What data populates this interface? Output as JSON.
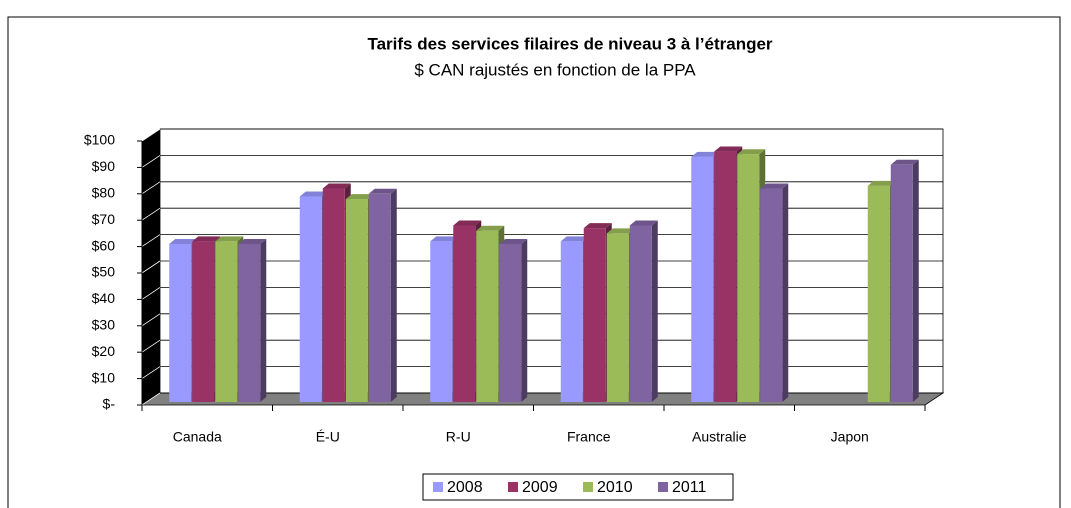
{
  "chart_data": {
    "type": "bar3d",
    "title": "Tarifs des services filaires de niveau 3 à l’étranger",
    "subtitle": "$ CAN rajustés en fonction de la PPA",
    "categories": [
      "Canada",
      "É-U",
      "R-U",
      "France",
      "Australie",
      "Japon"
    ],
    "series": [
      {
        "name": "2008",
        "color": "#9999ff",
        "values": [
          61,
          79,
          62,
          62,
          94,
          null
        ]
      },
      {
        "name": "2009",
        "color": "#993366",
        "values": [
          62,
          82,
          68,
          67,
          96,
          null
        ]
      },
      {
        "name": "2010",
        "color": "#9bbb59",
        "values": [
          62,
          78,
          66,
          65,
          95,
          83
        ]
      },
      {
        "name": "2011",
        "color": "#8064a2",
        "values": [
          61,
          80,
          61,
          68,
          82,
          91
        ]
      }
    ],
    "ylim": [
      0,
      100
    ],
    "yticks": [
      {
        "value": 0,
        "label": "$-"
      },
      {
        "value": 10,
        "label": "$10"
      },
      {
        "value": 20,
        "label": "$20"
      },
      {
        "value": 30,
        "label": "$30"
      },
      {
        "value": 40,
        "label": "$40"
      },
      {
        "value": 50,
        "label": "$50"
      },
      {
        "value": 60,
        "label": "$60"
      },
      {
        "value": 70,
        "label": "$70"
      },
      {
        "value": 80,
        "label": "$80"
      },
      {
        "value": 90,
        "label": "$90"
      },
      {
        "value": 100,
        "label": "$100"
      }
    ],
    "grid": true,
    "legend": "bottom"
  }
}
